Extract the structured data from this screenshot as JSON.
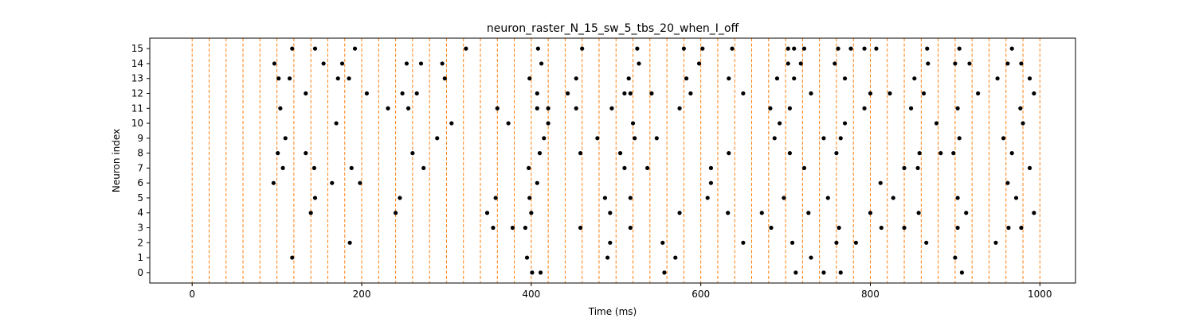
{
  "chart_data": {
    "type": "scatter",
    "title": "neuron_raster_N_15_sw_5_tbs_20_when_I_off",
    "xlabel": "Time (ms)",
    "ylabel": "Neuron index",
    "xlim": [
      -50,
      1042
    ],
    "ylim": [
      -0.7,
      15.7
    ],
    "x_ticks": [
      0,
      200,
      400,
      600,
      800,
      1000
    ],
    "y_ticks": [
      0,
      1,
      2,
      3,
      4,
      5,
      6,
      7,
      8,
      9,
      10,
      11,
      12,
      13,
      14,
      15
    ],
    "grid": false,
    "vlines": {
      "color": "#ff7f0e",
      "style": "dashed",
      "x": [
        0,
        20,
        40,
        60,
        80,
        100,
        120,
        140,
        160,
        180,
        200,
        220,
        240,
        260,
        280,
        300,
        320,
        340,
        360,
        380,
        400,
        420,
        440,
        460,
        480,
        500,
        520,
        540,
        560,
        580,
        600,
        620,
        640,
        660,
        680,
        700,
        720,
        740,
        760,
        780,
        800,
        820,
        840,
        860,
        880,
        900,
        920,
        940,
        960,
        980,
        1000
      ]
    },
    "spikes": {
      "color": "#000000",
      "points": [
        [
          401,
          0
        ],
        [
          411,
          0
        ],
        [
          557,
          0
        ],
        [
          712,
          0
        ],
        [
          745,
          0
        ],
        [
          765,
          0
        ],
        [
          908,
          0
        ],
        [
          118,
          1
        ],
        [
          395,
          1
        ],
        [
          490,
          1
        ],
        [
          570,
          1
        ],
        [
          730,
          1
        ],
        [
          900,
          1
        ],
        [
          186,
          2
        ],
        [
          493,
          2
        ],
        [
          555,
          2
        ],
        [
          650,
          2
        ],
        [
          708,
          2
        ],
        [
          760,
          2
        ],
        [
          783,
          2
        ],
        [
          866,
          2
        ],
        [
          948,
          2
        ],
        [
          355,
          3
        ],
        [
          378,
          3
        ],
        [
          393,
          3
        ],
        [
          458,
          3
        ],
        [
          517,
          3
        ],
        [
          683,
          3
        ],
        [
          763,
          3
        ],
        [
          813,
          3
        ],
        [
          840,
          3
        ],
        [
          903,
          3
        ],
        [
          963,
          3
        ],
        [
          978,
          3
        ],
        [
          140,
          4
        ],
        [
          240,
          4
        ],
        [
          348,
          4
        ],
        [
          400,
          4
        ],
        [
          493,
          4
        ],
        [
          575,
          4
        ],
        [
          632,
          4
        ],
        [
          672,
          4
        ],
        [
          727,
          4
        ],
        [
          800,
          4
        ],
        [
          857,
          4
        ],
        [
          913,
          4
        ],
        [
          993,
          4
        ],
        [
          145,
          5
        ],
        [
          245,
          5
        ],
        [
          358,
          5
        ],
        [
          398,
          5
        ],
        [
          487,
          5
        ],
        [
          517,
          5
        ],
        [
          608,
          5
        ],
        [
          698,
          5
        ],
        [
          750,
          5
        ],
        [
          827,
          5
        ],
        [
          903,
          5
        ],
        [
          972,
          5
        ],
        [
          96,
          6
        ],
        [
          165,
          6
        ],
        [
          198,
          6
        ],
        [
          407,
          6
        ],
        [
          612,
          6
        ],
        [
          812,
          6
        ],
        [
          962,
          6
        ],
        [
          107,
          7
        ],
        [
          144,
          7
        ],
        [
          188,
          7
        ],
        [
          273,
          7
        ],
        [
          397,
          7
        ],
        [
          510,
          7
        ],
        [
          537,
          7
        ],
        [
          612,
          7
        ],
        [
          722,
          7
        ],
        [
          840,
          7
        ],
        [
          856,
          7
        ],
        [
          988,
          7
        ],
        [
          101,
          8
        ],
        [
          134,
          8
        ],
        [
          260,
          8
        ],
        [
          410,
          8
        ],
        [
          458,
          8
        ],
        [
          505,
          8
        ],
        [
          633,
          8
        ],
        [
          705,
          8
        ],
        [
          760,
          8
        ],
        [
          858,
          8
        ],
        [
          883,
          8
        ],
        [
          898,
          8
        ],
        [
          967,
          8
        ],
        [
          110,
          9
        ],
        [
          289,
          9
        ],
        [
          415,
          9
        ],
        [
          478,
          9
        ],
        [
          522,
          9
        ],
        [
          548,
          9
        ],
        [
          687,
          9
        ],
        [
          745,
          9
        ],
        [
          765,
          9
        ],
        [
          905,
          9
        ],
        [
          957,
          9
        ],
        [
          170,
          10
        ],
        [
          306,
          10
        ],
        [
          373,
          10
        ],
        [
          420,
          10
        ],
        [
          520,
          10
        ],
        [
          693,
          10
        ],
        [
          770,
          10
        ],
        [
          878,
          10
        ],
        [
          980,
          10
        ],
        [
          104,
          11
        ],
        [
          231,
          11
        ],
        [
          255,
          11
        ],
        [
          360,
          11
        ],
        [
          407,
          11
        ],
        [
          420,
          11
        ],
        [
          453,
          11
        ],
        [
          495,
          11
        ],
        [
          575,
          11
        ],
        [
          682,
          11
        ],
        [
          705,
          11
        ],
        [
          793,
          11
        ],
        [
          848,
          11
        ],
        [
          903,
          11
        ],
        [
          977,
          11
        ],
        [
          134,
          12
        ],
        [
          206,
          12
        ],
        [
          248,
          12
        ],
        [
          265,
          12
        ],
        [
          407,
          12
        ],
        [
          443,
          12
        ],
        [
          510,
          12
        ],
        [
          517,
          12
        ],
        [
          542,
          12
        ],
        [
          588,
          12
        ],
        [
          650,
          12
        ],
        [
          730,
          12
        ],
        [
          800,
          12
        ],
        [
          823,
          12
        ],
        [
          863,
          12
        ],
        [
          927,
          12
        ],
        [
          993,
          12
        ],
        [
          102,
          13
        ],
        [
          115,
          13
        ],
        [
          172,
          13
        ],
        [
          185,
          13
        ],
        [
          298,
          13
        ],
        [
          398,
          13
        ],
        [
          453,
          13
        ],
        [
          515,
          13
        ],
        [
          583,
          13
        ],
        [
          633,
          13
        ],
        [
          690,
          13
        ],
        [
          710,
          13
        ],
        [
          770,
          13
        ],
        [
          852,
          13
        ],
        [
          950,
          13
        ],
        [
          988,
          13
        ],
        [
          97,
          14
        ],
        [
          155,
          14
        ],
        [
          177,
          14
        ],
        [
          253,
          14
        ],
        [
          270,
          14
        ],
        [
          295,
          14
        ],
        [
          412,
          14
        ],
        [
          527,
          14
        ],
        [
          598,
          14
        ],
        [
          703,
          14
        ],
        [
          718,
          14
        ],
        [
          758,
          14
        ],
        [
          868,
          14
        ],
        [
          900,
          14
        ],
        [
          917,
          14
        ],
        [
          962,
          14
        ],
        [
          978,
          14
        ],
        [
          118,
          15
        ],
        [
          145,
          15
        ],
        [
          192,
          15
        ],
        [
          323,
          15
        ],
        [
          408,
          15
        ],
        [
          460,
          15
        ],
        [
          525,
          15
        ],
        [
          580,
          15
        ],
        [
          602,
          15
        ],
        [
          637,
          15
        ],
        [
          703,
          15
        ],
        [
          710,
          15
        ],
        [
          722,
          15
        ],
        [
          762,
          15
        ],
        [
          777,
          15
        ],
        [
          793,
          15
        ],
        [
          807,
          15
        ],
        [
          867,
          15
        ],
        [
          905,
          15
        ],
        [
          967,
          15
        ]
      ]
    }
  }
}
